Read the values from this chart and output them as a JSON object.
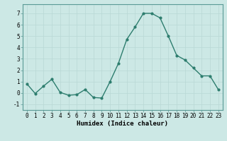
{
  "xlabel": "Humidex (Indice chaleur)",
  "x": [
    0,
    1,
    2,
    3,
    4,
    5,
    6,
    7,
    8,
    9,
    10,
    11,
    12,
    13,
    14,
    15,
    16,
    17,
    18,
    19,
    20,
    21,
    22,
    23
  ],
  "y": [
    0.8,
    -0.05,
    0.6,
    1.2,
    0.05,
    -0.2,
    -0.15,
    0.3,
    -0.4,
    -0.45,
    1.0,
    2.6,
    4.7,
    5.8,
    7.0,
    7.0,
    6.6,
    5.0,
    3.3,
    2.9,
    2.2,
    1.5,
    1.5,
    0.3
  ],
  "line_color": "#2d7d6e",
  "marker": "o",
  "marker_size": 2,
  "line_width": 1.0,
  "background_color": "#cce8e5",
  "grid_color": "#b8d8d5",
  "ylim": [
    -1.5,
    7.8
  ],
  "xlim": [
    -0.5,
    23.5
  ],
  "yticks": [
    -1,
    0,
    1,
    2,
    3,
    4,
    5,
    6,
    7
  ],
  "xticks": [
    0,
    1,
    2,
    3,
    4,
    5,
    6,
    7,
    8,
    9,
    10,
    11,
    12,
    13,
    14,
    15,
    16,
    17,
    18,
    19,
    20,
    21,
    22,
    23
  ],
  "tick_label_fontsize": 5.5,
  "xlabel_fontsize": 6.5
}
